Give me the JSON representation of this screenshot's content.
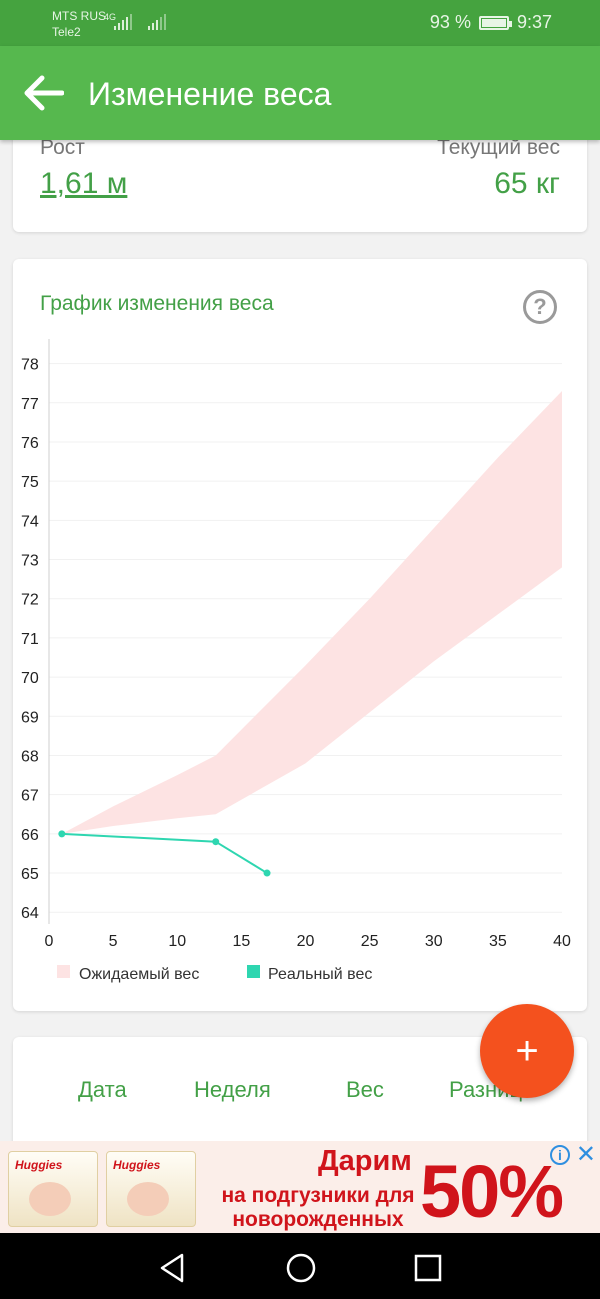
{
  "status_bar": {
    "carrier1": "MTS RUS",
    "carrier2": "Tele2",
    "network": "4G",
    "battery": "93 %",
    "time": "9:37"
  },
  "app_bar": {
    "title": "Изменение веса"
  },
  "summary": {
    "height_label": "Рост",
    "height_value": "1,61 м",
    "weight_label": "Текущий вес",
    "weight_value": "65 кг"
  },
  "chart_section": {
    "title": "График изменения веса",
    "help_symbol": "?"
  },
  "chart_data": {
    "type": "line",
    "x_ticks": [
      0,
      5,
      10,
      15,
      20,
      25,
      30,
      35,
      40
    ],
    "y_ticks": [
      64,
      65,
      66,
      67,
      68,
      69,
      70,
      71,
      72,
      73,
      74,
      75,
      76,
      77,
      78
    ],
    "xlim": [
      0,
      40
    ],
    "ylim": [
      63.7,
      78.5
    ],
    "grid": "horizontal",
    "legend_position": "bottom",
    "series": [
      {
        "name": "Ожидаемый вес",
        "type": "area",
        "color": "#fde3e3",
        "x": [
          1,
          5,
          10,
          13,
          20,
          25,
          30,
          35,
          40
        ],
        "upper": [
          66.0,
          66.7,
          67.5,
          68.0,
          70.3,
          72.0,
          73.8,
          75.6,
          77.3
        ],
        "lower": [
          66.0,
          66.2,
          66.4,
          66.5,
          67.8,
          69.1,
          70.4,
          71.6,
          72.8
        ]
      },
      {
        "name": "Реальный вес",
        "type": "line",
        "color": "#2ed6b0",
        "x": [
          1,
          13,
          17
        ],
        "y": [
          66.0,
          65.8,
          65.0
        ]
      }
    ]
  },
  "table": {
    "headers": [
      "Дата",
      "Неделя",
      "Вес",
      "Разница"
    ]
  },
  "fab": {
    "symbol": "+"
  },
  "ad": {
    "brand": "Huggies",
    "title": "Дарим",
    "subtitle_line1": "на подгузники для",
    "subtitle_line2": "новорожденных",
    "percent": "50%",
    "info_symbol": "i",
    "close_symbol": "✕"
  }
}
